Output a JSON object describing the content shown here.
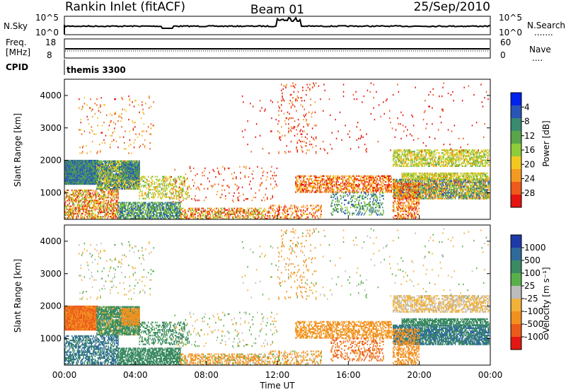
{
  "header": {
    "station": "Rankin Inlet (fitACF)",
    "beam": "Beam 01",
    "date": "25/Sep/2010"
  },
  "noise_panel": {
    "left_label": "N.Sky",
    "right_label": "N.Search",
    "left_ticks": [
      "10^5",
      "10^0"
    ],
    "right_ticks": [
      "10^5",
      "10^0"
    ]
  },
  "freq_panel": {
    "left_label_1": "Freq.",
    "left_label_2": "[MHz]",
    "right_label": "Nave",
    "left_ticks": [
      "18",
      "8"
    ],
    "right_ticks": [
      "60",
      "0"
    ]
  },
  "cpid_panel": {
    "label": "CPID",
    "mode": "themis 3300"
  },
  "chart_data": [
    {
      "type": "heatmap",
      "name": "power",
      "ylabel": "Slant Range [km]",
      "yticks": [
        1000,
        2000,
        3000,
        4000
      ],
      "ylim": [
        180,
        4500
      ],
      "xlim": [
        0,
        24
      ],
      "colorbar": {
        "label": "Power [dB]",
        "tick_labels": [
          "4",
          "8",
          "12",
          "16",
          "20",
          "24",
          "28"
        ],
        "colors": [
          "#0022ee",
          "#2a55b8",
          "#3a8a70",
          "#5aa44a",
          "#8fcc3a",
          "#f2c81e",
          "#f49a20",
          "#ee5a1a",
          "#e61410"
        ]
      }
    },
    {
      "type": "heatmap",
      "name": "velocity",
      "ylabel": "Slant Range [km]",
      "yticks": [
        1000,
        2000,
        3000,
        4000
      ],
      "ylim": [
        180,
        4500
      ],
      "xlim": [
        0,
        24
      ],
      "xlabel": "Time UT",
      "xticks": [
        "00:00",
        "04:00",
        "08:00",
        "12:00",
        "16:00",
        "20:00",
        "00:00"
      ],
      "colorbar": {
        "label": "Velocity [m s⁻¹]",
        "tick_labels": [
          "1000",
          "500",
          "100",
          "25",
          "-25",
          "-100",
          "-500",
          "-1000"
        ],
        "colors": [
          "#1e3aa8",
          "#2f6a9a",
          "#3a8a62",
          "#59b04a",
          "#bcbcbc",
          "#f2b23a",
          "#f2901e",
          "#ec5a1a",
          "#e41812"
        ]
      }
    }
  ]
}
